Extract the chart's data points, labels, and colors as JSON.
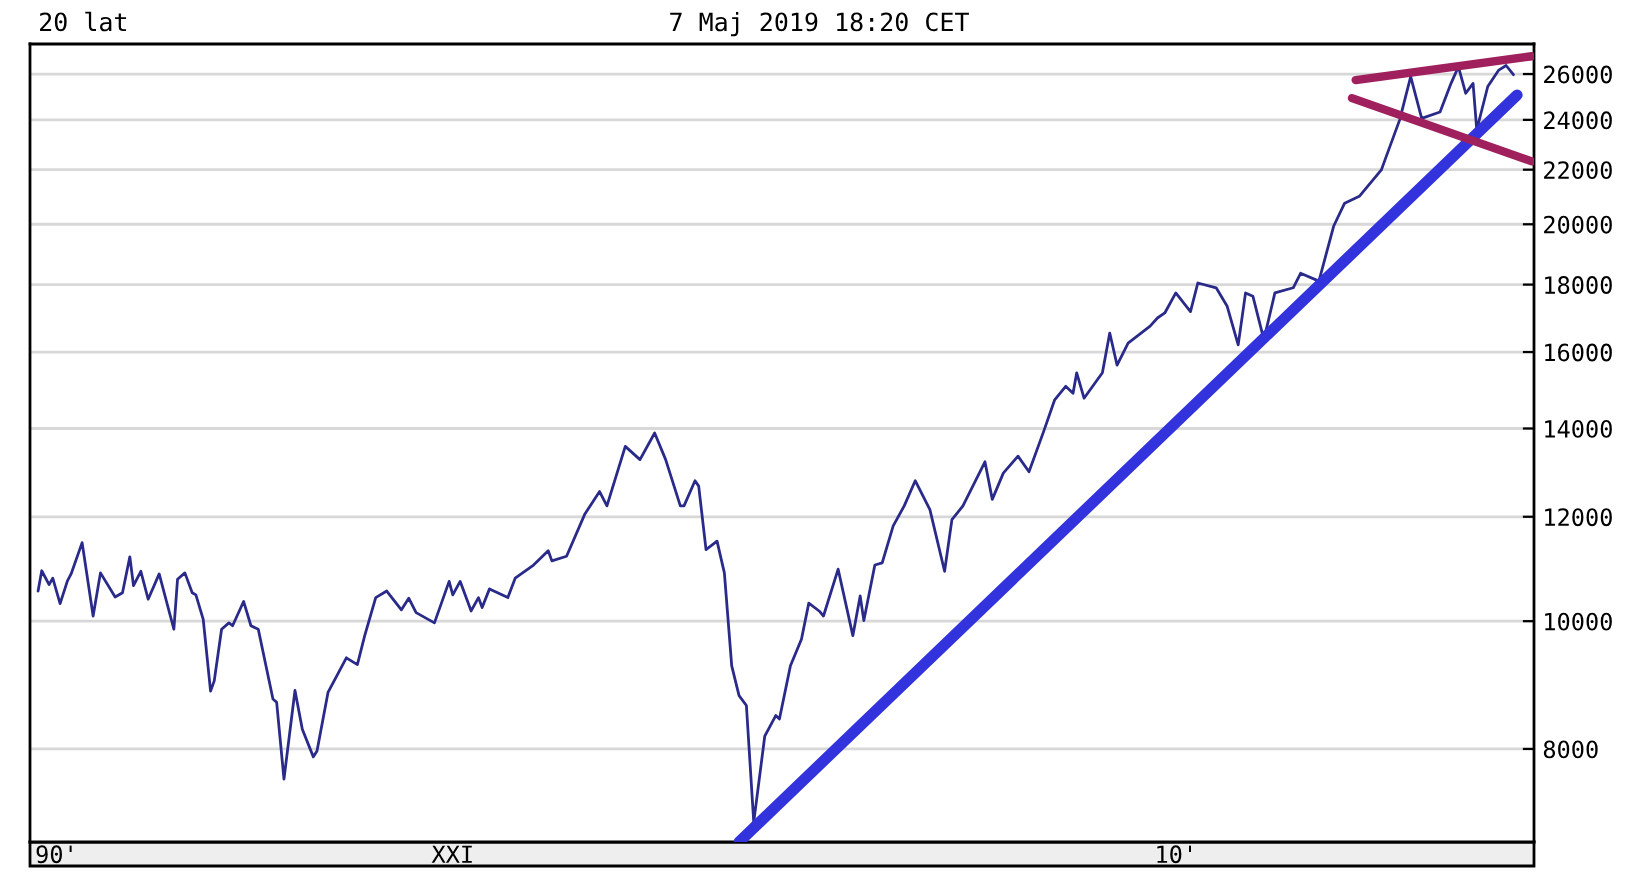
{
  "chart_data": {
    "type": "line",
    "title": "20 lat",
    "subtitle": "7 Maj 2019 18:20 CET",
    "log": "y",
    "grid": "y",
    "marker": "none",
    "line_style": "solid",
    "ylim": [
      6800,
      27400
    ],
    "yticks": [
      8000,
      10000,
      12000,
      14000,
      16000,
      18000,
      20000,
      22000,
      24000,
      26000
    ],
    "categories": [
      null,
      null,
      null,
      null,
      null,
      null,
      null,
      "90'",
      null,
      null,
      null,
      null,
      null,
      null,
      null,
      null,
      null,
      null,
      null,
      null,
      null,
      null,
      null,
      null,
      null,
      null,
      null,
      null,
      null,
      null,
      null,
      null,
      null,
      null,
      null,
      null,
      null,
      null,
      null,
      null,
      null,
      null,
      null,
      null,
      null,
      null,
      null,
      null,
      null,
      null,
      null,
      null,
      null,
      null,
      null,
      null,
      null,
      null,
      null,
      null,
      null,
      null,
      null,
      null,
      null,
      null,
      null,
      null,
      null,
      null,
      null,
      null,
      null,
      null,
      null,
      null,
      null,
      null,
      null,
      null,
      null,
      null,
      null,
      null,
      null,
      null,
      null,
      null,
      null,
      null,
      null,
      null,
      null,
      null,
      null,
      null,
      null,
      null,
      null,
      null,
      null,
      null,
      null,
      null,
      null,
      null,
      null,
      null,
      null,
      null,
      null,
      null,
      null,
      null,
      null,
      "XXI",
      null,
      null,
      null,
      null,
      null,
      null,
      null,
      null,
      null,
      null,
      null,
      null,
      null,
      null,
      null,
      null,
      null,
      null,
      null,
      null,
      null,
      null,
      null,
      null,
      null,
      null,
      null,
      null,
      null,
      null,
      null,
      null,
      null,
      null,
      null,
      null,
      null,
      null,
      null,
      null,
      null,
      null,
      null,
      null,
      null,
      null,
      null,
      null,
      null,
      null,
      null,
      null,
      null,
      null,
      null,
      null,
      null,
      null,
      null,
      null,
      null,
      null,
      null,
      null,
      null,
      null,
      null,
      null,
      null,
      null,
      null,
      null,
      null,
      null,
      null,
      null,
      null,
      null,
      null,
      null,
      null,
      null,
      null,
      null,
      null,
      null,
      null,
      null,
      null,
      null,
      null,
      null,
      null,
      null,
      null,
      null,
      null,
      null,
      null,
      null,
      null,
      null,
      null,
      null,
      null,
      null,
      null,
      null,
      null,
      null,
      null,
      null,
      null,
      null,
      null,
      null,
      null,
      null,
      null,
      null,
      null,
      null,
      null,
      null,
      null,
      null,
      null,
      null,
      null,
      null,
      null,
      null,
      null,
      null,
      null,
      null,
      null,
      null,
      null,
      null,
      null,
      null,
      null,
      null,
      null,
      null,
      null,
      null,
      null,
      null,
      null,
      null,
      null,
      null,
      null,
      null,
      null,
      null,
      null,
      null,
      null,
      null,
      null,
      null,
      null,
      null,
      null,
      null,
      null,
      null,
      null,
      null,
      null,
      null,
      null,
      null,
      null,
      null,
      null,
      null,
      null,
      null,
      null,
      null,
      null,
      null,
      null,
      null,
      null,
      null,
      null,
      null,
      null,
      null,
      null,
      null,
      "10'",
      null,
      null,
      null,
      null,
      null,
      null,
      null,
      null,
      null,
      null,
      null,
      null,
      null,
      null,
      null,
      null,
      null,
      null,
      null,
      null,
      null,
      null,
      null,
      null,
      null,
      null,
      null,
      null,
      null,
      null,
      null,
      null,
      null,
      null,
      null,
      null,
      null,
      null,
      null,
      null,
      null,
      null,
      null,
      null,
      null,
      null,
      null,
      null,
      null,
      null,
      null,
      null,
      null,
      null,
      null,
      null,
      null,
      null,
      null,
      null,
      null,
      null,
      null,
      null,
      null,
      null,
      null,
      null,
      null,
      null,
      null,
      null,
      null,
      null,
      null,
      null,
      null,
      null,
      null,
      null,
      null,
      null,
      null,
      null,
      null,
      null,
      null,
      null,
      null,
      null,
      null,
      null,
      null,
      null,
      null,
      null,
      null
    ],
    "series": [
      {
        "color": "#2a2a8a",
        "values": [
          null,
          null,
          10540,
          10920,
          null,
          10660,
          10780,
          null,
          10310,
          null,
          10730,
          10860,
          null,
          null,
          11470,
          null,
          null,
          10090,
          null,
          10880,
          null,
          null,
          null,
          10430,
          null,
          10510,
          null,
          11190,
          10640,
          null,
          10910,
          null,
          10390,
          null,
          null,
          10860,
          null,
          null,
          null,
          9860,
          10760,
          null,
          10880,
          null,
          10510,
          10470,
          null,
          10030,
          null,
          8850,
          9010,
          null,
          9860,
          null,
          9970,
          9920,
          null,
          null,
          10350,
          null,
          9920,
          null,
          9860,
          null,
          null,
          null,
          8730,
          8680,
          null,
          7590,
          null,
          null,
          8860,
          null,
          8280,
          null,
          null,
          7890,
          7970,
          null,
          null,
          8830,
          null,
          null,
          null,
          null,
          9380,
          null,
          null,
          9270,
          null,
          9750,
          null,
          null,
          10420,
          null,
          null,
          10540,
          null,
          null,
          null,
          10200,
          null,
          10410,
          null,
          10150,
          null,
          null,
          null,
          null,
          9970,
          null,
          null,
          null,
          10720,
          10470,
          null,
          10720,
          null,
          null,
          10180,
          null,
          10420,
          10240,
          null,
          10580,
          null,
          null,
          null,
          null,
          10420,
          null,
          10780,
          null,
          null,
          null,
          null,
          11030,
          null,
          null,
          null,
          11310,
          11110,
          null,
          null,
          null,
          11200,
          null,
          null,
          null,
          null,
          12060,
          null,
          null,
          null,
          12540,
          null,
          12230,
          null,
          null,
          null,
          null,
          13570,
          null,
          null,
          null,
          13260,
          null,
          null,
          null,
          13890,
          null,
          null,
          13260,
          null,
          null,
          null,
          12230,
          12230,
          null,
          null,
          12780,
          12660,
          null,
          11330,
          null,
          null,
          11500,
          null,
          10880,
          null,
          9250,
          null,
          8780,
          null,
          8630,
          null,
          7040,
          null,
          null,
          8180,
          null,
          null,
          8480,
          8430,
          null,
          null,
          9250,
          null,
          null,
          9690,
          null,
          10320,
          null,
          null,
          10170,
          10090,
          null,
          null,
          null,
          10950,
          null,
          null,
          null,
          9750,
          null,
          10450,
          10010,
          null,
          null,
          11030,
          null,
          11070,
          null,
          null,
          11810,
          null,
          null,
          12230,
          null,
          null,
          12780,
          null,
          null,
          null,
          12150,
          null,
          null,
          null,
          10910,
          null,
          11940,
          null,
          null,
          12230,
          null,
          null,
          null,
          null,
          null,
          13210,
          null,
          12370,
          null,
          null,
          12950,
          null,
          null,
          null,
          13340,
          null,
          null,
          12980,
          null,
          null,
          null,
          13930,
          null,
          null,
          14720,
          null,
          null,
          15070,
          null,
          14890,
          15430,
          null,
          14760,
          null,
          null,
          null,
          null,
          15430,
          null,
          16540,
          null,
          15640,
          null,
          null,
          16250,
          null,
          null,
          null,
          null,
          null,
          16740,
          null,
          16980,
          null,
          17130,
          null,
          null,
          17740,
          null,
          null,
          null,
          17170,
          null,
          18050,
          null,
          null,
          null,
          null,
          17900,
          null,
          null,
          17330,
          null,
          null,
          16200,
          null,
          17740,
          null,
          17640,
          null,
          null,
          16350,
          null,
          null,
          17740,
          null,
          null,
          null,
          null,
          17900,
          null,
          18360,
          null,
          null,
          null,
          null,
          18110,
          null,
          null,
          null,
          19930,
          null,
          null,
          20750,
          null,
          null,
          null,
          21000,
          null,
          null,
          null,
          null,
          null,
          21990,
          22380,
          null,
          null,
          null,
          24000,
          null,
          null,
          25880,
          null,
          null,
          24060,
          null,
          null,
          null,
          null,
          24330,
          null,
          null,
          25580,
          null,
          26340,
          null,
          25140,
          null,
          25580,
          23580,
          null,
          null,
          25440,
          null,
          null,
          26180,
          null,
          26390,
          null,
          25970,
          null,
          null,
          null,
          null,
          null
        ]
      },
      {
        "color": "#3333dd",
        "values": [
          null,
          null,
          null,
          null,
          null,
          null,
          null,
          null,
          null,
          null,
          null,
          null,
          null,
          null,
          null,
          null,
          null,
          null,
          null,
          null,
          null,
          null,
          null,
          null,
          null,
          null,
          null,
          null,
          null,
          null,
          null,
          null,
          null,
          null,
          null,
          null,
          null,
          null,
          null,
          null,
          null,
          null,
          null,
          null,
          null,
          null,
          null,
          null,
          null,
          null,
          null,
          null,
          null,
          null,
          null,
          null,
          null,
          null,
          null,
          null,
          null,
          null,
          null,
          null,
          null,
          null,
          null,
          null,
          null,
          null,
          null,
          null,
          null,
          null,
          null,
          null,
          null,
          null,
          null,
          null,
          null,
          null,
          null,
          null,
          null,
          null,
          null,
          null,
          null,
          null,
          null,
          null,
          null,
          null,
          null,
          null,
          null,
          null,
          null,
          null,
          null,
          null,
          null,
          null,
          null,
          null,
          null,
          null,
          null,
          null,
          null,
          null,
          null,
          null,
          null,
          null,
          null,
          null,
          null,
          null,
          null,
          null,
          null,
          null,
          null,
          null,
          null,
          null,
          null,
          null,
          null,
          null,
          null,
          null,
          null,
          null,
          null,
          null,
          null,
          null,
          null,
          null,
          null,
          null,
          null,
          null,
          null,
          null,
          null,
          null,
          null,
          null,
          null,
          null,
          null,
          null,
          null,
          null,
          null,
          null,
          null,
          null,
          null,
          null,
          null,
          null,
          null,
          null,
          null,
          null,
          null,
          null,
          null,
          null,
          null,
          null,
          null,
          null,
          null,
          null,
          null,
          null,
          null,
          null,
          null,
          null,
          null,
          null,
          null,
          null,
          null,
          null,
          null,
          6800,
          null,
          null,
          null,
          null,
          null,
          null,
          null,
          null,
          null,
          null,
          null,
          null,
          null,
          null,
          null,
          null,
          null,
          null,
          null,
          null,
          null,
          null,
          null,
          null,
          null,
          null,
          null,
          null,
          null,
          null,
          null,
          null,
          null,
          null,
          null,
          null,
          null,
          null,
          null,
          null,
          null,
          null,
          null,
          null,
          null,
          null,
          null,
          null,
          null,
          null,
          null,
          null,
          null,
          null,
          null,
          null,
          null,
          null,
          null,
          null,
          null,
          null,
          null,
          null,
          null,
          null,
          null,
          null,
          null,
          null,
          null,
          null,
          null,
          null,
          null,
          null,
          null,
          null,
          null,
          null,
          null,
          null,
          null,
          null,
          null,
          null,
          null,
          null,
          null,
          null,
          null,
          null,
          null,
          null,
          null,
          null,
          null,
          null,
          null,
          null,
          null,
          null,
          null,
          null,
          null,
          null,
          null,
          null,
          null,
          null,
          null,
          null,
          null,
          null,
          null,
          null,
          null,
          null,
          null,
          null,
          null,
          null,
          null,
          null,
          null,
          null,
          null,
          null,
          null,
          null,
          null,
          null,
          null,
          null,
          null,
          null,
          null,
          null,
          null,
          null,
          null,
          null,
          null,
          null,
          null,
          null,
          null,
          null,
          null,
          null,
          null,
          null,
          null,
          null,
          null,
          null,
          null,
          null,
          null,
          null,
          null,
          null,
          null,
          null,
          null,
          null,
          null,
          null,
          null,
          null,
          null,
          null,
          null,
          null,
          null,
          null,
          null,
          null,
          null,
          null,
          null,
          null,
          null,
          null,
          null,
          null,
          null,
          null,
          null,
          null,
          null,
          null,
          null,
          null,
          null,
          null,
          null,
          null,
          null,
          null,
          null,
          null,
          null,
          null,
          null,
          null,
          null,
          null,
          null,
          null,
          null,
          25060,
          null,
          null,
          null,
          null
        ]
      },
      {
        "color": "#a0205e",
        "values": [
          null,
          null,
          null,
          null,
          null,
          null,
          null,
          null,
          null,
          null,
          null,
          null,
          null,
          null,
          null,
          null,
          null,
          null,
          null,
          null,
          null,
          null,
          null,
          null,
          null,
          null,
          null,
          null,
          null,
          null,
          null,
          null,
          null,
          null,
          null,
          null,
          null,
          null,
          null,
          null,
          null,
          null,
          null,
          null,
          null,
          null,
          null,
          null,
          null,
          null,
          null,
          null,
          null,
          null,
          null,
          null,
          null,
          null,
          null,
          null,
          null,
          null,
          null,
          null,
          null,
          null,
          null,
          null,
          null,
          null,
          null,
          null,
          null,
          null,
          null,
          null,
          null,
          null,
          null,
          null,
          null,
          null,
          null,
          null,
          null,
          null,
          null,
          null,
          null,
          null,
          null,
          null,
          null,
          null,
          null,
          null,
          null,
          null,
          null,
          null,
          null,
          null,
          null,
          null,
          null,
          null,
          null,
          null,
          null,
          null,
          null,
          null,
          null,
          null,
          null,
          null,
          null,
          null,
          null,
          null,
          null,
          null,
          null,
          null,
          null,
          null,
          null,
          null,
          null,
          null,
          null,
          null,
          null,
          null,
          null,
          null,
          null,
          null,
          null,
          null,
          null,
          null,
          null,
          null,
          null,
          null,
          null,
          null,
          null,
          null,
          null,
          null,
          null,
          null,
          null,
          null,
          null,
          null,
          null,
          null,
          null,
          null,
          null,
          null,
          null,
          null,
          null,
          null,
          null,
          null,
          null,
          null,
          null,
          null,
          null,
          null,
          null,
          null,
          null,
          null,
          null,
          null,
          null,
          null,
          null,
          null,
          null,
          null,
          null,
          null,
          null,
          null,
          null,
          null,
          null,
          null,
          null,
          null,
          null,
          null,
          null,
          null,
          null,
          null,
          null,
          null,
          null,
          null,
          null,
          null,
          null,
          null,
          null,
          null,
          null,
          null,
          null,
          null,
          null,
          null,
          null,
          null,
          null,
          null,
          null,
          null,
          null,
          null,
          null,
          null,
          null,
          null,
          null,
          null,
          null,
          null,
          null,
          null,
          null,
          null,
          null,
          null,
          null,
          null,
          null,
          null,
          null,
          null,
          null,
          null,
          null,
          null,
          null,
          null,
          null,
          null,
          null,
          null,
          null,
          null,
          null,
          null,
          null,
          null,
          null,
          null,
          null,
          null,
          null,
          null,
          null,
          null,
          null,
          null,
          null,
          null,
          null,
          null,
          null,
          null,
          null,
          null,
          null,
          null,
          null,
          null,
          null,
          null,
          null,
          null,
          null,
          null,
          null,
          null,
          null,
          null,
          null,
          null,
          null,
          null,
          null,
          null,
          null,
          null,
          null,
          null,
          null,
          null,
          null,
          null,
          null,
          null,
          null,
          null,
          null,
          null,
          null,
          null,
          null,
          null,
          null,
          null,
          null,
          null,
          null,
          null,
          null,
          null,
          null,
          null,
          null,
          null,
          null,
          null,
          null,
          null,
          null,
          null,
          null,
          null,
          null,
          null,
          null,
          null,
          null,
          null,
          null,
          null,
          null,
          null,
          null,
          null,
          null,
          null,
          null,
          null,
          null,
          null,
          null,
          null,
          null,
          25730,
          null,
          null,
          null,
          null,
          null,
          null,
          null,
          null,
          null,
          null,
          null,
          null,
          null,
          null,
          null,
          null,
          null,
          null,
          null,
          null,
          null,
          null,
          null,
          null,
          null,
          null,
          null,
          null,
          null,
          null,
          null,
          null,
          null,
          null,
          null,
          null,
          null,
          null,
          null,
          null,
          null,
          null,
          null,
          null,
          null,
          null,
          null,
          26820
        ]
      },
      {
        "color": "#a0205e",
        "values": [
          null,
          null,
          null,
          null,
          null,
          null,
          null,
          null,
          null,
          null,
          null,
          null,
          null,
          null,
          null,
          null,
          null,
          null,
          null,
          null,
          null,
          null,
          null,
          null,
          null,
          null,
          null,
          null,
          null,
          null,
          null,
          null,
          null,
          null,
          null,
          null,
          null,
          null,
          null,
          null,
          null,
          null,
          null,
          null,
          null,
          null,
          null,
          null,
          null,
          null,
          null,
          null,
          null,
          null,
          null,
          null,
          null,
          null,
          null,
          null,
          null,
          null,
          null,
          null,
          null,
          null,
          null,
          null,
          null,
          null,
          null,
          null,
          null,
          null,
          null,
          null,
          null,
          null,
          null,
          null,
          null,
          null,
          null,
          null,
          null,
          null,
          null,
          null,
          null,
          null,
          null,
          null,
          null,
          null,
          null,
          null,
          null,
          null,
          null,
          null,
          null,
          null,
          null,
          null,
          null,
          null,
          null,
          null,
          null,
          null,
          null,
          null,
          null,
          null,
          null,
          null,
          null,
          null,
          null,
          null,
          null,
          null,
          null,
          null,
          null,
          null,
          null,
          null,
          null,
          null,
          null,
          null,
          null,
          null,
          null,
          null,
          null,
          null,
          null,
          null,
          null,
          null,
          null,
          null,
          null,
          null,
          null,
          null,
          null,
          null,
          null,
          null,
          null,
          null,
          null,
          null,
          null,
          null,
          null,
          null,
          null,
          null,
          null,
          null,
          null,
          null,
          null,
          null,
          null,
          null,
          null,
          null,
          null,
          null,
          null,
          null,
          null,
          null,
          null,
          null,
          null,
          null,
          null,
          null,
          null,
          null,
          null,
          null,
          null,
          null,
          null,
          null,
          null,
          null,
          null,
          null,
          null,
          null,
          null,
          null,
          null,
          null,
          null,
          null,
          null,
          null,
          null,
          null,
          null,
          null,
          null,
          null,
          null,
          null,
          null,
          null,
          null,
          null,
          null,
          null,
          null,
          null,
          null,
          null,
          null,
          null,
          null,
          null,
          null,
          null,
          null,
          null,
          null,
          null,
          null,
          null,
          null,
          null,
          null,
          null,
          null,
          null,
          null,
          null,
          null,
          null,
          null,
          null,
          null,
          null,
          null,
          null,
          null,
          null,
          null,
          null,
          null,
          null,
          null,
          null,
          null,
          null,
          null,
          null,
          null,
          null,
          null,
          null,
          null,
          null,
          null,
          null,
          null,
          null,
          null,
          null,
          null,
          null,
          null,
          null,
          null,
          null,
          null,
          null,
          null,
          null,
          null,
          null,
          null,
          null,
          null,
          null,
          null,
          null,
          null,
          null,
          null,
          null,
          null,
          null,
          null,
          null,
          null,
          null,
          null,
          null,
          null,
          null,
          null,
          null,
          null,
          null,
          null,
          null,
          null,
          null,
          null,
          null,
          null,
          null,
          null,
          null,
          null,
          null,
          null,
          null,
          null,
          null,
          null,
          null,
          null,
          null,
          null,
          null,
          null,
          null,
          null,
          null,
          null,
          null,
          null,
          null,
          null,
          null,
          null,
          null,
          null,
          null,
          null,
          null,
          null,
          null,
          null,
          null,
          null,
          null,
          null,
          null,
          null,
          null,
          24930,
          null,
          null,
          null,
          null,
          null,
          null,
          null,
          null,
          null,
          null,
          null,
          null,
          null,
          null,
          null,
          null,
          null,
          null,
          null,
          null,
          null,
          null,
          null,
          null,
          null,
          null,
          null,
          null,
          null,
          null,
          null,
          null,
          null,
          null,
          null,
          null,
          null,
          null,
          null,
          null,
          null,
          null,
          null,
          null,
          null,
          null,
          null,
          null,
          22320
        ]
      }
    ]
  }
}
